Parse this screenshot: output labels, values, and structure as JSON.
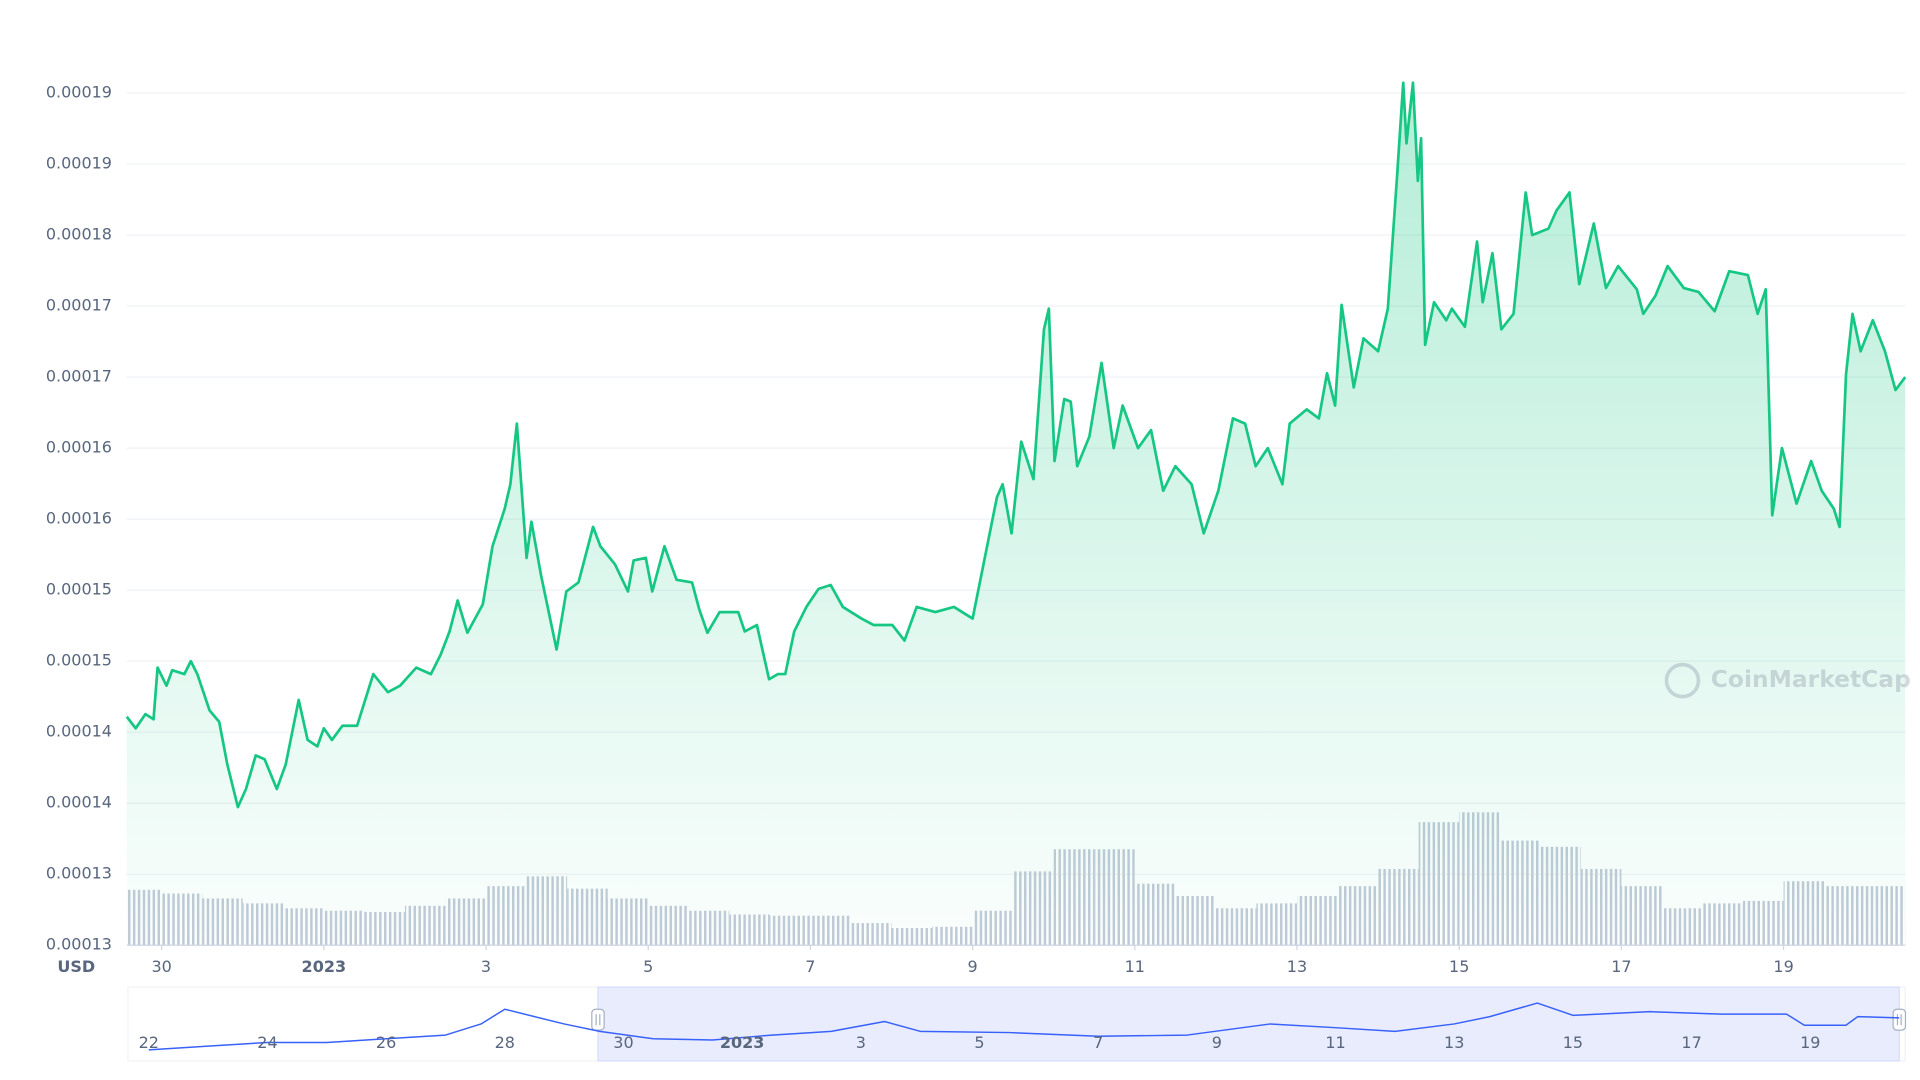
{
  "chart_data": [
    {
      "type": "line",
      "area": true,
      "color": "#16c784",
      "grid": true,
      "y_label": "USD",
      "watermark": "CoinMarketCap",
      "xlim": [
        29.57,
        51.5
      ],
      "xticks": [
        30,
        {
          "value": 32,
          "label": "2023"
        },
        {
          "value": 34,
          "label": "3"
        },
        {
          "value": 36,
          "label": "5"
        },
        {
          "value": 38,
          "label": "7"
        },
        {
          "value": 40,
          "label": "9"
        },
        {
          "value": 42,
          "label": "11"
        },
        {
          "value": 44,
          "label": "13"
        },
        {
          "value": 46,
          "label": "15"
        },
        {
          "value": 48,
          "label": "17"
        },
        {
          "value": 50,
          "label": "19"
        }
      ],
      "ylim": [
        0.0001252,
        0.0001965
      ],
      "yticks": [
        {
          "value": 0.0001252,
          "label": "0.00013"
        },
        {
          "value": 0.0001307,
          "label": "0.00013"
        },
        {
          "value": 0.0001362,
          "label": "0.00014"
        },
        {
          "value": 0.0001417,
          "label": "0.00014"
        },
        {
          "value": 0.0001472,
          "label": "0.00015"
        },
        {
          "value": 0.0001527,
          "label": "0.00015"
        },
        {
          "value": 0.0001582,
          "label": "0.00016"
        },
        {
          "value": 0.0001637,
          "label": "0.00016"
        },
        {
          "value": 0.0001692,
          "label": "0.00017"
        },
        {
          "value": 0.0001747,
          "label": "0.00017"
        },
        {
          "value": 0.0001802,
          "label": "0.00018"
        },
        {
          "value": 0.0001857,
          "label": "0.00019"
        },
        {
          "value": 0.0001912,
          "label": "0.00019"
        }
      ],
      "x": [
        29.57,
        29.68,
        29.8,
        29.9,
        29.95,
        30.06,
        30.13,
        30.28,
        30.36,
        30.44,
        30.59,
        30.71,
        30.81,
        30.94,
        31.04,
        31.16,
        31.27,
        31.42,
        31.53,
        31.69,
        31.8,
        31.92,
        32.0,
        32.1,
        32.23,
        32.41,
        32.61,
        32.79,
        32.94,
        33.14,
        33.32,
        33.44,
        33.55,
        33.65,
        33.77,
        33.96,
        34.08,
        34.23,
        34.3,
        34.38,
        34.5,
        34.56,
        34.68,
        34.87,
        34.99,
        35.14,
        35.32,
        35.41,
        35.59,
        35.75,
        35.82,
        35.97,
        36.05,
        36.2,
        36.35,
        36.54,
        36.63,
        36.73,
        36.88,
        37.11,
        37.19,
        37.34,
        37.49,
        37.6,
        37.69,
        37.8,
        37.95,
        38.1,
        38.25,
        38.4,
        38.63,
        38.78,
        39.01,
        39.16,
        39.31,
        39.54,
        39.77,
        40.0,
        40.15,
        40.3,
        40.37,
        40.48,
        40.6,
        40.75,
        40.88,
        40.94,
        41.01,
        41.13,
        41.21,
        41.29,
        41.44,
        41.59,
        41.74,
        41.85,
        42.04,
        42.2,
        42.35,
        42.5,
        42.7,
        42.85,
        43.03,
        43.21,
        43.36,
        43.49,
        43.64,
        43.82,
        43.91,
        44.12,
        44.27,
        44.37,
        44.47,
        44.55,
        44.7,
        44.82,
        45.0,
        45.12,
        45.23,
        45.31,
        45.35,
        45.43,
        45.49,
        45.53,
        45.58,
        45.69,
        45.84,
        45.91,
        46.07,
        46.22,
        46.29,
        46.41,
        46.52,
        46.67,
        46.82,
        46.9,
        47.1,
        47.2,
        47.36,
        47.48,
        47.66,
        47.81,
        47.96,
        48.19,
        48.27,
        48.42,
        48.57,
        48.77,
        48.95,
        49.15,
        49.33,
        49.56,
        49.68,
        49.78,
        49.86,
        49.98,
        50.16,
        50.34,
        50.47,
        50.62,
        50.69,
        50.77,
        50.85,
        50.95,
        51.1,
        51.25,
        51.38,
        51.5
      ],
      "values": [
        0.0001429,
        0.000142,
        0.0001431,
        0.0001427,
        0.0001467,
        0.0001453,
        0.0001465,
        0.0001462,
        0.0001472,
        0.0001462,
        0.0001434,
        0.0001425,
        0.0001392,
        0.0001359,
        0.0001373,
        0.0001399,
        0.0001396,
        0.0001373,
        0.0001392,
        0.0001442,
        0.0001411,
        0.0001406,
        0.000142,
        0.0001411,
        0.0001422,
        0.0001422,
        0.0001462,
        0.0001448,
        0.0001453,
        0.0001467,
        0.0001462,
        0.0001477,
        0.0001495,
        0.0001519,
        0.0001494,
        0.0001516,
        0.0001561,
        0.000159,
        0.0001609,
        0.0001656,
        0.0001552,
        0.000158,
        0.0001538,
        0.0001481,
        0.0001526,
        0.0001533,
        0.0001576,
        0.0001561,
        0.0001547,
        0.0001526,
        0.000155,
        0.0001552,
        0.0001526,
        0.0001561,
        0.0001535,
        0.0001533,
        0.0001512,
        0.0001494,
        0.000151,
        0.000151,
        0.0001495,
        0.00015,
        0.0001458,
        0.0001462,
        0.0001462,
        0.0001495,
        0.0001514,
        0.0001528,
        0.0001531,
        0.0001514,
        0.0001505,
        0.00015,
        0.00015,
        0.0001488,
        0.0001514,
        0.000151,
        0.0001514,
        0.0001505,
        0.0001552,
        0.0001599,
        0.0001609,
        0.0001571,
        0.0001642,
        0.0001613,
        0.0001729,
        0.0001745,
        0.0001627,
        0.0001675,
        0.0001673,
        0.0001623,
        0.0001646,
        0.0001703,
        0.0001637,
        0.000167,
        0.0001637,
        0.0001651,
        0.0001604,
        0.0001623,
        0.0001609,
        0.0001571,
        0.0001604,
        0.000166,
        0.0001656,
        0.0001623,
        0.0001637,
        0.0001609,
        0.0001656,
        0.0001667,
        0.000166,
        0.0001695,
        0.000167,
        0.0001748,
        0.0001684,
        0.0001722,
        0.0001712,
        0.0001745,
        0.0001844,
        0.000192,
        0.0001873,
        0.000192,
        0.0001844,
        0.0001877,
        0.0001717,
        0.000175,
        0.0001736,
        0.0001745,
        0.0001731,
        0.0001797,
        0.000175,
        0.0001788,
        0.0001729,
        0.0001741,
        0.0001835,
        0.0001802,
        0.0001807,
        0.0001821,
        0.0001835,
        0.0001764,
        0.0001811,
        0.0001761,
        0.0001778,
        0.000176,
        0.0001741,
        0.0001755,
        0.0001778,
        0.0001761,
        0.0001758,
        0.0001743,
        0.0001774,
        0.0001771,
        0.0001741,
        0.000176,
        0.0001585,
        0.0001637,
        0.0001594,
        0.0001627,
        0.0001604,
        0.000159,
        0.0001576,
        0.0001694,
        0.0001741,
        0.0001712,
        0.0001736,
        0.0001712,
        0.0001682,
        0.0001692
      ],
      "volume": {
        "color": "#cfd6e4",
        "ylim": [
          0,
          120
        ],
        "x": [
          29.75,
          30.25,
          30.75,
          31.25,
          31.75,
          32.25,
          32.75,
          33.25,
          33.75,
          34.25,
          34.75,
          35.25,
          35.75,
          36.25,
          36.75,
          37.25,
          37.75,
          38.25,
          38.75,
          39.25,
          39.75,
          40.25,
          40.75,
          41.25,
          41.75,
          42.25,
          42.75,
          43.25,
          43.75,
          44.25,
          44.75,
          45.25,
          45.75,
          46.25,
          46.75,
          47.25,
          47.75,
          48.25,
          48.75,
          49.25,
          49.75,
          50.25,
          50.75,
          51.25
        ],
        "values": [
          45,
          42,
          38,
          34,
          30,
          28,
          27,
          32,
          38,
          48,
          56,
          46,
          38,
          32,
          28,
          25,
          24,
          24,
          18,
          14,
          15,
          28,
          60,
          78,
          78,
          50,
          40,
          30,
          34,
          40,
          48,
          62,
          100,
          108,
          85,
          80,
          62,
          48,
          30,
          34,
          36,
          52,
          48,
          48
        ]
      }
    },
    {
      "type": "line",
      "color": "#3861fb",
      "xlim": [
        21.65,
        51.6
      ],
      "xticks": [
        22,
        24,
        26,
        28,
        30,
        {
          "value": 32,
          "label": "2023"
        },
        {
          "value": 34,
          "label": "3"
        },
        {
          "value": 36,
          "label": "5"
        },
        {
          "value": 38,
          "label": "7"
        },
        {
          "value": 40,
          "label": "9"
        },
        {
          "value": 42,
          "label": "11"
        },
        {
          "value": 44,
          "label": "13"
        },
        {
          "value": 46,
          "label": "15"
        },
        {
          "value": 48,
          "label": "17"
        },
        {
          "value": 50,
          "label": "19"
        }
      ],
      "ylim": [
        0.0001067,
        0.0002083
      ],
      "x": [
        22,
        23,
        24,
        25,
        26,
        27,
        27.6,
        28,
        28.5,
        29,
        29.6,
        30.5,
        31.5,
        32.5,
        33.5,
        34.4,
        35,
        36.5,
        38,
        39.5,
        40.9,
        42,
        43,
        44,
        44.6,
        45.4,
        46,
        47.3,
        48.5,
        49.6,
        49.9,
        50.6,
        50.8,
        51.5
      ],
      "values": [
        0.000123,
        0.0001285,
        0.0001339,
        0.0001339,
        0.0001394,
        0.0001448,
        0.0001612,
        0.0001829,
        0.000172,
        0.0001612,
        0.0001503,
        0.0001394,
        0.0001376,
        0.0001448,
        0.0001503,
        0.0001648,
        0.0001503,
        0.0001485,
        0.000143,
        0.0001448,
        0.0001612,
        0.0001557,
        0.0001503,
        0.0001612,
        0.000172,
        0.000192,
        0.0001739,
        0.0001793,
        0.0001757,
        0.0001757,
        0.0001593,
        0.0001593,
        0.000172,
        0.0001702
      ]
    }
  ]
}
